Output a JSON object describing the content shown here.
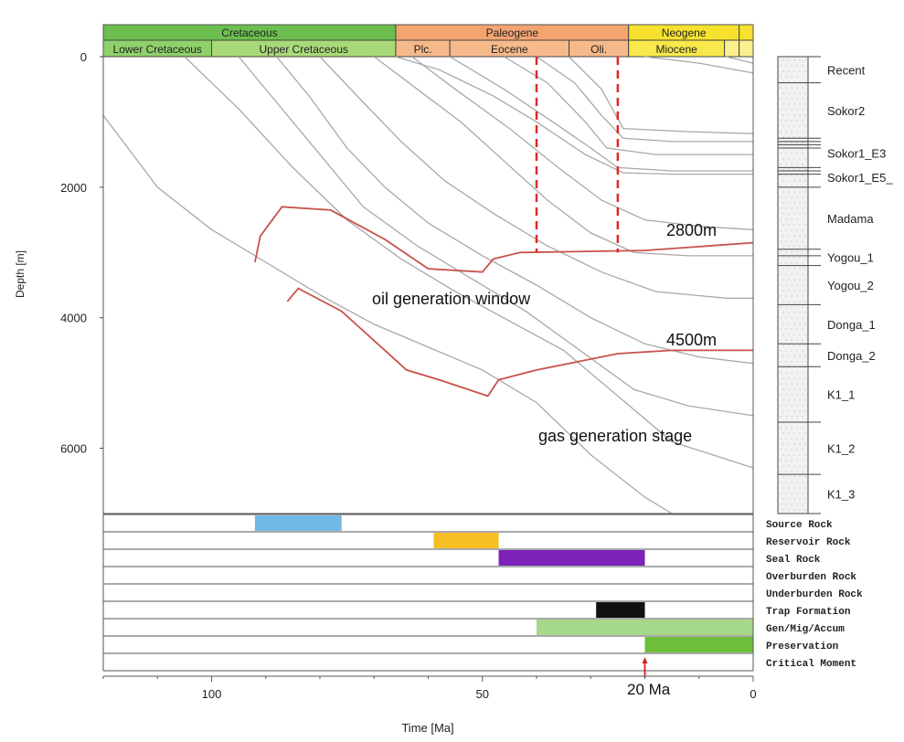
{
  "chart_data": {
    "type": "line",
    "title": "",
    "xlabel": "Time [Ma]",
    "ylabel": "Depth [m]",
    "xlim": [
      120,
      0
    ],
    "ylim": [
      0,
      7000
    ],
    "x_ticks": [
      100,
      50,
      0
    ],
    "y_ticks": [
      0,
      2000,
      4000,
      6000
    ],
    "grid": false,
    "periods": [
      {
        "name": "Cretaceous",
        "start": 120,
        "end": 66,
        "color": "#6cbf4e"
      },
      {
        "name": "Paleogene",
        "start": 66,
        "end": 23,
        "color": "#f4a470"
      },
      {
        "name": "Neogene",
        "start": 23,
        "end": 2.6,
        "color": "#f6e22e"
      },
      {
        "name": "",
        "start": 2.6,
        "end": 0,
        "color": "#f6e22e"
      }
    ],
    "epochs": [
      {
        "name": "Lower Cretaceous",
        "start": 120,
        "end": 100,
        "color": "#8fd16a"
      },
      {
        "name": "Upper Cretaceous",
        "start": 100,
        "end": 66,
        "color": "#a8da79"
      },
      {
        "name": "Plc.",
        "start": 66,
        "end": 56,
        "color": "#f6b98a"
      },
      {
        "name": "Eocene",
        "start": 56,
        "end": 34,
        "color": "#f6b98a"
      },
      {
        "name": "Oli.",
        "start": 34,
        "end": 23,
        "color": "#f6b98a"
      },
      {
        "name": "Miocene",
        "start": 23,
        "end": 5.3,
        "color": "#f8e84a"
      },
      {
        "name": "",
        "start": 5.3,
        "end": 2.6,
        "color": "#fbf08c"
      },
      {
        "name": "",
        "start": 2.6,
        "end": 0,
        "color": "#fbf08c"
      }
    ],
    "burial_series": [
      {
        "points": [
          [
            120,
            900
          ],
          [
            110,
            2000
          ],
          [
            100,
            2650
          ],
          [
            90,
            3150
          ],
          [
            80,
            3650
          ],
          [
            70,
            4100
          ],
          [
            60,
            4450
          ],
          [
            50,
            4800
          ],
          [
            40,
            5300
          ],
          [
            30,
            6100
          ],
          [
            20,
            6750
          ],
          [
            15,
            7000
          ]
        ]
      },
      {
        "points": [
          [
            105,
            0
          ],
          [
            95,
            800
          ],
          [
            85,
            1700
          ],
          [
            75,
            2500
          ],
          [
            65,
            3100
          ],
          [
            55,
            3600
          ],
          [
            45,
            4050
          ],
          [
            35,
            4500
          ],
          [
            25,
            5200
          ],
          [
            15,
            5900
          ],
          [
            0,
            6300
          ]
        ]
      },
      {
        "points": [
          [
            95,
            0
          ],
          [
            88,
            700
          ],
          [
            80,
            1500
          ],
          [
            72,
            2300
          ],
          [
            62,
            2900
          ],
          [
            52,
            3400
          ],
          [
            42,
            3900
          ],
          [
            32,
            4500
          ],
          [
            22,
            5100
          ],
          [
            12,
            5350
          ],
          [
            0,
            5500
          ]
        ]
      },
      {
        "points": [
          [
            88,
            0
          ],
          [
            82,
            600
          ],
          [
            75,
            1400
          ],
          [
            68,
            2000
          ],
          [
            60,
            2550
          ],
          [
            50,
            3050
          ],
          [
            40,
            3500
          ],
          [
            30,
            4000
          ],
          [
            20,
            4400
          ],
          [
            10,
            4600
          ],
          [
            0,
            4700
          ]
        ]
      },
      {
        "points": [
          [
            80,
            0
          ],
          [
            72,
            700
          ],
          [
            65,
            1300
          ],
          [
            57,
            1900
          ],
          [
            48,
            2400
          ],
          [
            38,
            2900
          ],
          [
            28,
            3300
          ],
          [
            18,
            3600
          ],
          [
            5,
            3700
          ],
          [
            0,
            3700
          ]
        ]
      },
      {
        "points": [
          [
            70,
            0
          ],
          [
            62,
            500
          ],
          [
            54,
            1000
          ],
          [
            46,
            1600
          ],
          [
            38,
            2200
          ],
          [
            30,
            2700
          ],
          [
            22,
            3000
          ],
          [
            12,
            3050
          ],
          [
            0,
            3050
          ]
        ]
      },
      {
        "points": [
          [
            63,
            0
          ],
          [
            55,
            500
          ],
          [
            45,
            1100
          ],
          [
            36,
            1700
          ],
          [
            28,
            2200
          ],
          [
            20,
            2500
          ],
          [
            10,
            2600
          ],
          [
            0,
            2650
          ]
        ]
      },
      {
        "points": [
          [
            66,
            0
          ],
          [
            58,
            200
          ],
          [
            48,
            600
          ],
          [
            40,
            1000
          ],
          [
            31,
            1500
          ],
          [
            24,
            1780
          ],
          [
            15,
            1800
          ],
          [
            0,
            1800
          ]
        ]
      },
      {
        "points": [
          [
            56,
            0
          ],
          [
            46,
            500
          ],
          [
            37,
            1000
          ],
          [
            30,
            1400
          ],
          [
            25,
            1700
          ],
          [
            15,
            1750
          ],
          [
            0,
            1750
          ]
        ]
      },
      {
        "points": [
          [
            46,
            0
          ],
          [
            38,
            400
          ],
          [
            31,
            1000
          ],
          [
            27,
            1400
          ],
          [
            18,
            1500
          ],
          [
            0,
            1500
          ]
        ]
      },
      {
        "points": [
          [
            40,
            0
          ],
          [
            33,
            400
          ],
          [
            28,
            900
          ],
          [
            24,
            1250
          ],
          [
            15,
            1300
          ],
          [
            0,
            1300
          ]
        ]
      },
      {
        "points": [
          [
            34,
            0
          ],
          [
            28,
            500
          ],
          [
            24,
            1100
          ],
          [
            12,
            1150
          ],
          [
            0,
            1180
          ]
        ]
      },
      {
        "points": [
          [
            20,
            0
          ],
          [
            10,
            100
          ],
          [
            0,
            250
          ]
        ]
      },
      {
        "points": [
          [
            5,
            0
          ],
          [
            0,
            100
          ]
        ]
      }
    ],
    "maturity_lines": [
      {
        "name": "2800m",
        "color": "#c8514b",
        "points": [
          [
            92,
            3150
          ],
          [
            91,
            2750
          ],
          [
            87,
            2300
          ],
          [
            78,
            2350
          ],
          [
            68,
            2800
          ],
          [
            60,
            3250
          ],
          [
            50,
            3300
          ],
          [
            48,
            3100
          ],
          [
            43,
            3000
          ],
          [
            20,
            2970
          ],
          [
            0,
            2850
          ]
        ]
      },
      {
        "name": "4500m",
        "color": "#c8514b",
        "points": [
          [
            86,
            3750
          ],
          [
            84,
            3550
          ],
          [
            76,
            3900
          ],
          [
            64,
            4800
          ],
          [
            58,
            4950
          ],
          [
            49,
            5200
          ],
          [
            47,
            4950
          ],
          [
            40,
            4800
          ],
          [
            25,
            4550
          ],
          [
            15,
            4500
          ],
          [
            0,
            4500
          ]
        ]
      }
    ],
    "marker_lines": [
      {
        "time": 40,
        "depth_end": 3000,
        "color": "#e0282b"
      },
      {
        "time": 25,
        "depth_end": 3000,
        "color": "#e0282b"
      }
    ],
    "annotations": {
      "label_2800": "2800m",
      "label_4500": "4500m",
      "oil_window": "oil generation window",
      "gas_stage": "gas generation stage",
      "critical_moment_label": "20 Ma"
    },
    "stratigraphy": [
      {
        "name": "Recent",
        "top": 0,
        "base": 400
      },
      {
        "name": "Sokor2",
        "top": 400,
        "base": 1250
      },
      {
        "name": "Sokor1_E3",
        "top": 1250,
        "base": 1700
      },
      {
        "name": "Sokor1_E5_",
        "top": 1700,
        "base": 2000
      },
      {
        "name": "Madama",
        "top": 2000,
        "base": 2950
      },
      {
        "name": "Yogou_1",
        "top": 2950,
        "base": 3200
      },
      {
        "name": "Yogou_2",
        "top": 3200,
        "base": 3800
      },
      {
        "name": "Donga_1",
        "top": 3800,
        "base": 4400
      },
      {
        "name": "Donga_2",
        "top": 4400,
        "base": 4750
      },
      {
        "name": "K1_1",
        "top": 4750,
        "base": 5600
      },
      {
        "name": "K1_2",
        "top": 5600,
        "base": 6400
      },
      {
        "name": "K1_3",
        "top": 6400,
        "base": 7000
      }
    ],
    "strat_ticks": [
      0,
      400,
      1250,
      1300,
      1350,
      1400,
      1700,
      1750,
      1800,
      2000,
      2950,
      3050,
      3200,
      3800,
      4400,
      4750,
      5600,
      6400,
      7000
    ],
    "events": [
      {
        "name": "Source Rock",
        "start": 92,
        "end": 76,
        "color": "#72b9e6"
      },
      {
        "name": "Reservoir Rock",
        "start": 59,
        "end": 47,
        "color": "#f5bf24"
      },
      {
        "name": "Seal Rock",
        "start": 47,
        "end": 20,
        "color": "#7c22b8"
      },
      {
        "name": "Overburden Rock",
        "start": null,
        "end": null,
        "color": ""
      },
      {
        "name": "Underburden Rock",
        "start": null,
        "end": null,
        "color": ""
      },
      {
        "name": "Trap Formation",
        "start": 29,
        "end": 20,
        "color": "#111111"
      },
      {
        "name": "Gen/Mig/Accum",
        "start": 40,
        "end": 0,
        "color": "#a6d889"
      },
      {
        "name": "Preservation",
        "start": 20,
        "end": 0,
        "color": "#6fbe3c"
      },
      {
        "name": "Critical Moment",
        "start": null,
        "end": null,
        "color": ""
      }
    ],
    "critical_moment": 20
  }
}
